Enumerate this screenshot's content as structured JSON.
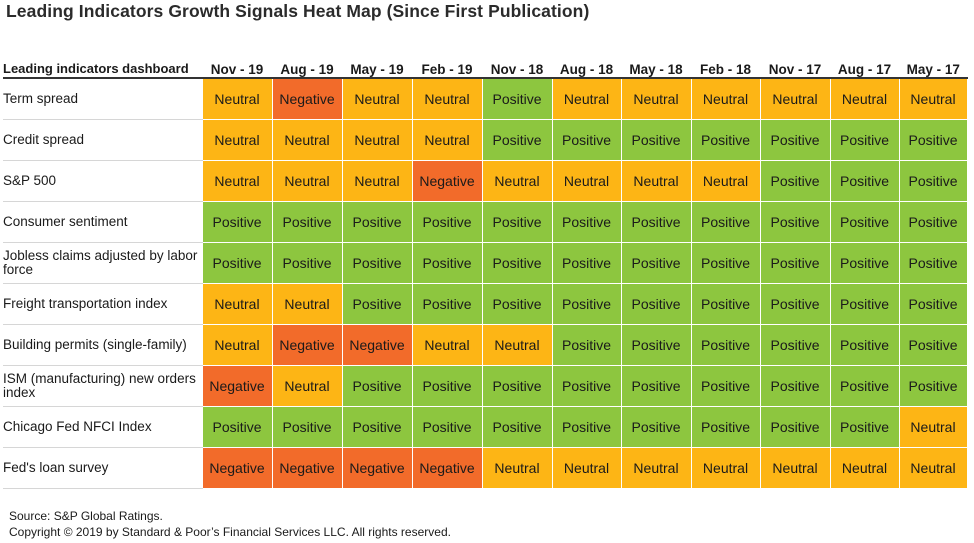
{
  "title": "Leading Indicators Growth Signals Heat Map (Since First Publication)",
  "corner_label": "Leading indicators dashboard",
  "source_line": "Source: S&P Global Ratings.",
  "copyright_line": "Copyright ©   2019 by Standard & Poor’s Financial Services LLC. All rights reserved.",
  "legend_colors": {
    "Neutral": "#FDB515",
    "Positive": "#8DC63F",
    "Negative": "#F26B2A"
  },
  "chart_data": {
    "type": "table",
    "columns": [
      "Nov - 19",
      "Aug - 19",
      "May - 19",
      "Feb - 19",
      "Nov - 18",
      "Aug - 18",
      "May - 18",
      "Feb - 18",
      "Nov - 17",
      "Aug - 17",
      "May - 17"
    ],
    "rows": [
      {
        "label": "Term spread",
        "values": [
          "Neutral",
          "Negative",
          "Neutral",
          "Neutral",
          "Positive",
          "Neutral",
          "Neutral",
          "Neutral",
          "Neutral",
          "Neutral",
          "Neutral"
        ]
      },
      {
        "label": "Credit spread",
        "values": [
          "Neutral",
          "Neutral",
          "Neutral",
          "Neutral",
          "Positive",
          "Positive",
          "Positive",
          "Positive",
          "Positive",
          "Positive",
          "Positive"
        ]
      },
      {
        "label": "S&P 500",
        "values": [
          "Neutral",
          "Neutral",
          "Neutral",
          "Negative",
          "Neutral",
          "Neutral",
          "Neutral",
          "Neutral",
          "Positive",
          "Positive",
          "Positive"
        ]
      },
      {
        "label": "Consumer sentiment",
        "values": [
          "Positive",
          "Positive",
          "Positive",
          "Positive",
          "Positive",
          "Positive",
          "Positive",
          "Positive",
          "Positive",
          "Positive",
          "Positive"
        ]
      },
      {
        "label": "Jobless claims adjusted by labor force",
        "values": [
          "Positive",
          "Positive",
          "Positive",
          "Positive",
          "Positive",
          "Positive",
          "Positive",
          "Positive",
          "Positive",
          "Positive",
          "Positive"
        ]
      },
      {
        "label": "Freight transportation index",
        "values": [
          "Neutral",
          "Neutral",
          "Positive",
          "Positive",
          "Positive",
          "Positive",
          "Positive",
          "Positive",
          "Positive",
          "Positive",
          "Positive"
        ]
      },
      {
        "label": "Building permits (single-family)",
        "values": [
          "Neutral",
          "Negative",
          "Negative",
          "Neutral",
          "Neutral",
          "Positive",
          "Positive",
          "Positive",
          "Positive",
          "Positive",
          "Positive"
        ]
      },
      {
        "label": "ISM (manufacturing) new orders index",
        "values": [
          "Negative",
          "Neutral",
          "Positive",
          "Positive",
          "Positive",
          "Positive",
          "Positive",
          "Positive",
          "Positive",
          "Positive",
          "Positive"
        ]
      },
      {
        "label": "Chicago Fed NFCI Index",
        "values": [
          "Positive",
          "Positive",
          "Positive",
          "Positive",
          "Positive",
          "Positive",
          "Positive",
          "Positive",
          "Positive",
          "Positive",
          "Neutral"
        ]
      },
      {
        "label": "Fed's loan survey",
        "values": [
          "Negative",
          "Negative",
          "Negative",
          "Negative",
          "Neutral",
          "Neutral",
          "Neutral",
          "Neutral",
          "Neutral",
          "Neutral",
          "Neutral"
        ]
      }
    ]
  }
}
